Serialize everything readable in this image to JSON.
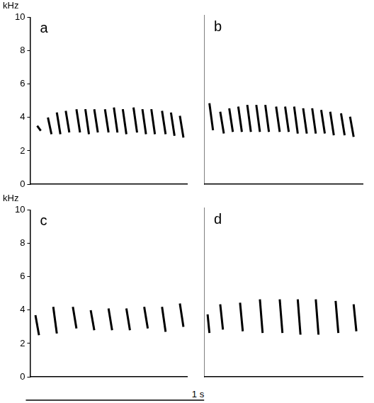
{
  "chart_data": [
    {
      "type": "line",
      "panel_label": "a",
      "y_label": "kHz",
      "xlim": [
        0,
        0.88
      ],
      "ylim": [
        0,
        10
      ],
      "yticks": [
        0,
        2,
        4,
        6,
        8,
        10
      ],
      "tick_labels": "y",
      "grid": false,
      "color": "#000000",
      "notes": {
        "t_start": [
          0.04,
          0.1,
          0.15,
          0.2,
          0.26,
          0.31,
          0.36,
          0.42,
          0.47,
          0.52,
          0.58,
          0.63,
          0.68,
          0.74,
          0.79,
          0.84
        ],
        "t_end": [
          0.06,
          0.12,
          0.17,
          0.22,
          0.28,
          0.33,
          0.38,
          0.44,
          0.49,
          0.54,
          0.6,
          0.65,
          0.7,
          0.76,
          0.81,
          0.86
        ],
        "f_high": [
          3.5,
          4.0,
          4.3,
          4.4,
          4.5,
          4.5,
          4.5,
          4.5,
          4.6,
          4.5,
          4.6,
          4.5,
          4.5,
          4.4,
          4.3,
          4.1
        ],
        "f_low": [
          3.2,
          3.0,
          3.0,
          3.1,
          3.1,
          3.0,
          3.1,
          3.1,
          3.1,
          3.0,
          3.1,
          3.0,
          3.0,
          3.0,
          2.9,
          2.8
        ]
      }
    },
    {
      "type": "line",
      "panel_label": "b",
      "xlim": [
        0,
        0.88
      ],
      "ylim": [
        0,
        10
      ],
      "yticks": [
        0,
        2,
        4,
        6,
        8,
        10
      ],
      "tick_labels": false,
      "grid": false,
      "color": "#000000",
      "notes": {
        "t_start": [
          0.03,
          0.09,
          0.14,
          0.19,
          0.24,
          0.29,
          0.34,
          0.4,
          0.45,
          0.5,
          0.55,
          0.6,
          0.65,
          0.7,
          0.76,
          0.81
        ],
        "t_end": [
          0.05,
          0.11,
          0.16,
          0.21,
          0.26,
          0.31,
          0.36,
          0.42,
          0.47,
          0.52,
          0.57,
          0.62,
          0.67,
          0.72,
          0.78,
          0.83
        ],
        "f_high": [
          4.8,
          4.3,
          4.5,
          4.6,
          4.7,
          4.7,
          4.7,
          4.6,
          4.6,
          4.6,
          4.5,
          4.5,
          4.4,
          4.3,
          4.2,
          4.0
        ],
        "f_low": [
          3.2,
          3.0,
          3.1,
          3.1,
          3.1,
          3.1,
          3.1,
          3.1,
          3.1,
          3.0,
          3.0,
          3.0,
          3.0,
          2.9,
          2.9,
          2.8
        ]
      }
    },
    {
      "type": "line",
      "panel_label": "c",
      "y_label": "kHz",
      "xlim": [
        0,
        0.88
      ],
      "ylim": [
        0,
        10
      ],
      "yticks": [
        0,
        2,
        4,
        6,
        8,
        10
      ],
      "tick_labels": "y",
      "grid": false,
      "color": "#000000",
      "notes": {
        "t_start": [
          0.03,
          0.13,
          0.24,
          0.34,
          0.44,
          0.54,
          0.64,
          0.74,
          0.84
        ],
        "t_end": [
          0.05,
          0.15,
          0.26,
          0.36,
          0.46,
          0.56,
          0.66,
          0.76,
          0.86
        ],
        "f_high": [
          3.7,
          4.2,
          4.2,
          4.0,
          4.1,
          4.1,
          4.2,
          4.2,
          4.4
        ],
        "f_low": [
          2.5,
          2.6,
          2.9,
          2.8,
          2.8,
          2.8,
          2.9,
          2.7,
          3.0
        ]
      }
    },
    {
      "type": "line",
      "panel_label": "d",
      "xlim": [
        0,
        0.88
      ],
      "ylim": [
        0,
        10
      ],
      "yticks": [
        0,
        2,
        4,
        6,
        8,
        10
      ],
      "tick_labels": false,
      "grid": false,
      "color": "#000000",
      "notes": {
        "t_start": [
          0.02,
          0.09,
          0.2,
          0.31,
          0.42,
          0.52,
          0.62,
          0.73,
          0.83
        ],
        "t_end": [
          0.03,
          0.105,
          0.215,
          0.325,
          0.435,
          0.535,
          0.635,
          0.745,
          0.845
        ],
        "f_high": [
          3.7,
          4.3,
          4.4,
          4.6,
          4.6,
          4.6,
          4.6,
          4.5,
          4.3
        ],
        "f_low": [
          2.6,
          2.8,
          2.7,
          2.6,
          2.6,
          2.5,
          2.5,
          2.6,
          2.7
        ]
      }
    }
  ],
  "scale_bar": {
    "value": 1,
    "label": "1 s"
  }
}
